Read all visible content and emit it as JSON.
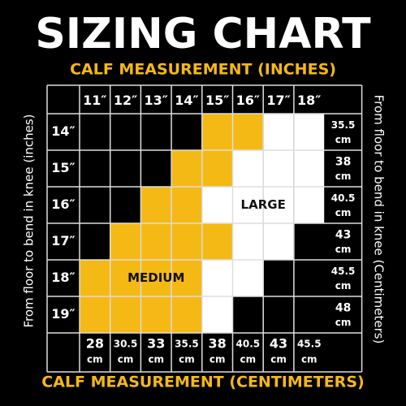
{
  "title": "SIZING CHART",
  "top_label": "CALF MEASUREMENT (INCHES)",
  "bottom_label": "CALF MEASUREMENT (CENTIMETERS)",
  "left_label": "From floor to bend in knee (inches)",
  "right_label": "From floor to bend in knee (Centimeters)",
  "columns": [
    "11″",
    "12″",
    "13″",
    "14″",
    "15″",
    "16″",
    "17″",
    "18″"
  ],
  "column_cm": [
    {
      "value": "28",
      "unit": "cm"
    },
    {
      "value": "30.5",
      "unit": "cm"
    },
    {
      "value": "33",
      "unit": "cm"
    },
    {
      "value": "35.5",
      "unit": "cm"
    },
    {
      "value": "38",
      "unit": "cm"
    },
    {
      "value": "40.5",
      "unit": "cm"
    },
    {
      "value": "43",
      "unit": "cm"
    },
    {
      "value": "45.5",
      "unit": "cm"
    }
  ],
  "rows": [
    "14″",
    "15″",
    "16″",
    "17″",
    "18″",
    "19″"
  ],
  "row_cm": [
    {
      "value": "35.5",
      "unit": "cm"
    },
    {
      "value": "38",
      "unit": "cm"
    },
    {
      "value": "40.5",
      "unit": "cm"
    },
    {
      "value": "43",
      "unit": "cm"
    },
    {
      "value": "45.5",
      "unit": "cm"
    },
    {
      "value": "48",
      "unit": "cm"
    }
  ],
  "cell_colors": [
    [
      "#000000",
      "#000000",
      "#000000",
      "#000000",
      "#f5b915",
      "#f5b915",
      "#ffffff",
      "#ffffff"
    ],
    [
      "#000000",
      "#000000",
      "#000000",
      "#f5b915",
      "#f5b915",
      "#ffffff",
      "#ffffff",
      "#ffffff"
    ],
    [
      "#000000",
      "#000000",
      "#f5b915",
      "#f5b915",
      "#ffffff",
      "#ffffff",
      "#ffffff",
      "#ffffff"
    ],
    [
      "#000000",
      "#f5b915",
      "#f5b915",
      "#f5b915",
      "#f5b915",
      "#ffffff",
      "#ffffff",
      "#000000"
    ],
    [
      "#f5b915",
      "#f5b915",
      "#f5b915",
      "#f5b915",
      "#ffffff",
      "#ffffff",
      "#000000",
      "#000000"
    ],
    [
      "#f5b915",
      "#f5b915",
      "#f5b915",
      "#f5b915",
      "#ffffff",
      "#000000",
      "#000000",
      "#000000"
    ]
  ],
  "regions": [
    {
      "label": "MEDIUM",
      "row": 4,
      "col": 2
    },
    {
      "label": "LARGE",
      "row": 2,
      "col": 5.5
    }
  ]
}
